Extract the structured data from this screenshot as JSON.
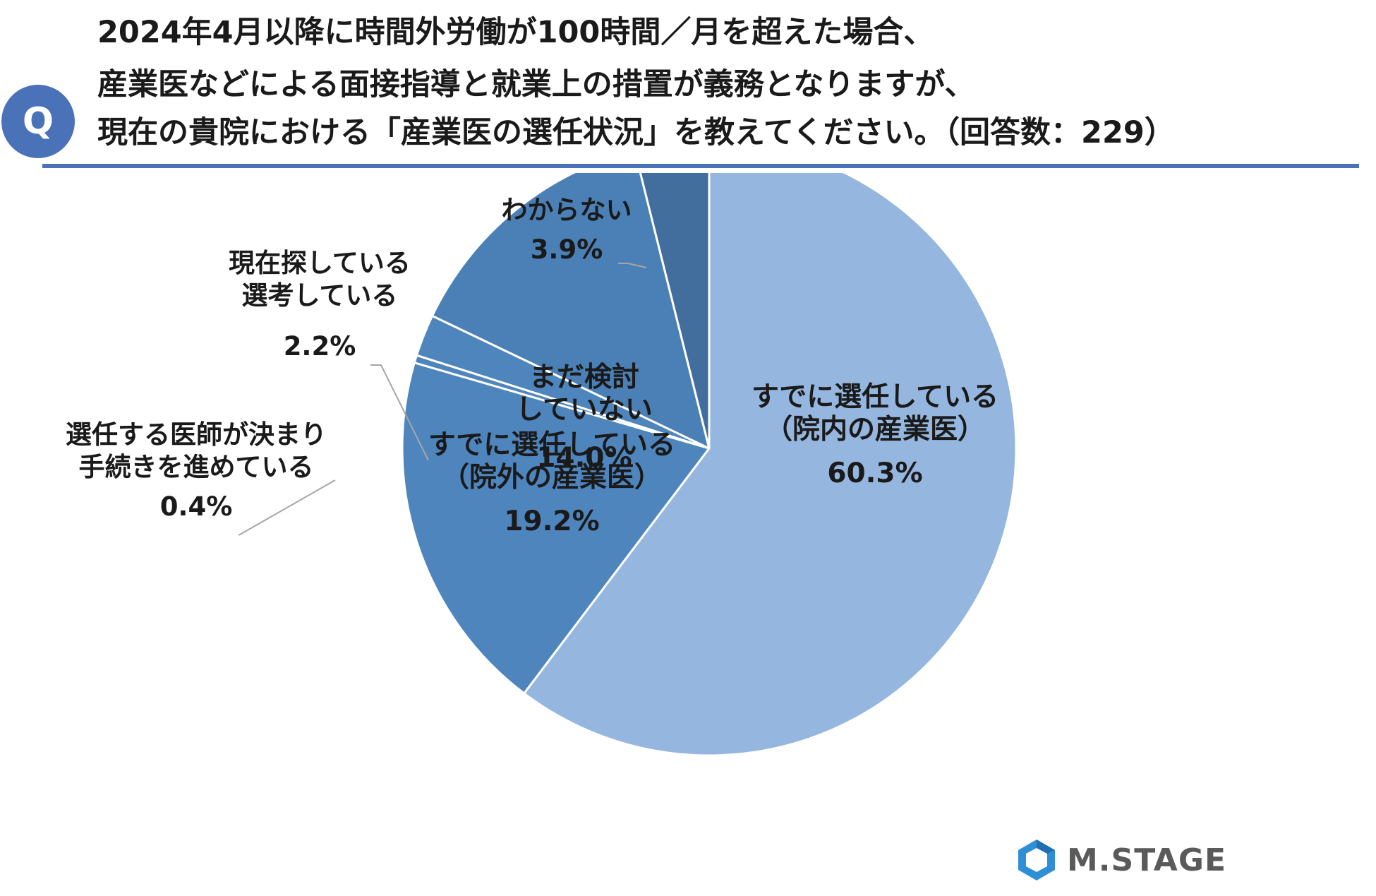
{
  "header": {
    "badge": "Q",
    "title_lines": [
      "2024年4月以降に時間外労働が100時間／月を超えた場合、",
      "産業医などによる面接指導と就業上の措置が義務となりますが、",
      "現在の貴院における「産業医の選任状況」を教えてください。（回答数：229）"
    ],
    "accent_color": "#4a72b8"
  },
  "chart_data": {
    "type": "pie",
    "start": "12 o'clock",
    "direction": "clockwise",
    "slices": [
      {
        "label": [
          "すでに選任している",
          "（院内の産業医）"
        ],
        "value": 60.3,
        "value_label": "60.3%",
        "color": "#95b6de"
      },
      {
        "label": [
          "すでに選任している",
          "（院外の産業医）"
        ],
        "value": 19.2,
        "value_label": "19.2%",
        "color": "#4f85bd"
      },
      {
        "label": [
          "選任する医師が決まり",
          "手続きを進めている"
        ],
        "value": 0.4,
        "value_label": "0.4%",
        "color": "#4f85bd"
      },
      {
        "label": [
          "現在探している",
          "選考している"
        ],
        "value": 2.2,
        "value_label": "2.2%",
        "color": "#4f85bd"
      },
      {
        "label": [
          "まだ検討",
          "していない"
        ],
        "value": 14.0,
        "value_label": "14.0%",
        "color": "#4b80b6"
      },
      {
        "label": [
          "わからない"
        ],
        "value": 3.9,
        "value_label": "3.9%",
        "color": "#416e9c"
      }
    ]
  },
  "logo": {
    "text": "M.STAGE",
    "icon": "hexagon-logo-icon"
  }
}
